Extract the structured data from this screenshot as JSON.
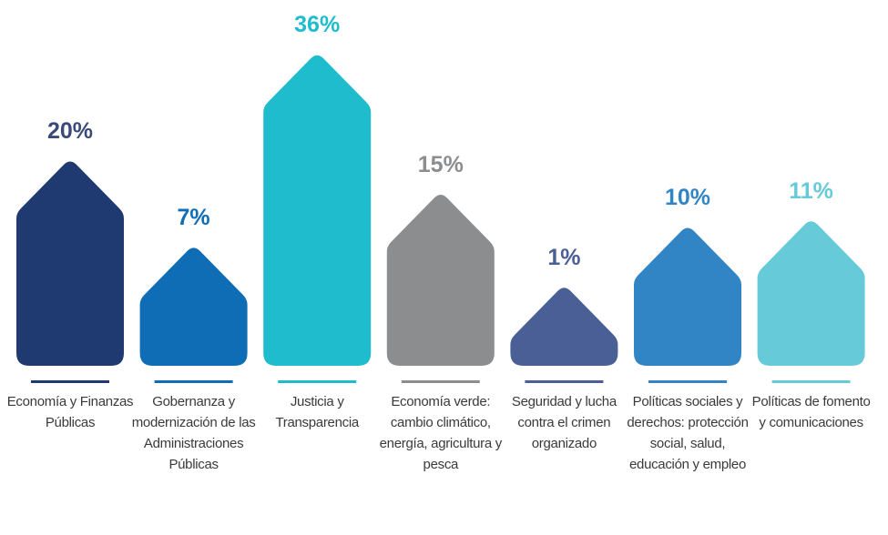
{
  "chart_data": {
    "type": "bar",
    "categories": [
      "Economía y Finanzas Públicas",
      "Gobernanza y modernización de las Administraciones Públicas",
      "Justicia y Transparencia",
      "Economía verde: cambio climático, energía, agricultura y pesca",
      "Seguridad y lucha contra el crimen organizado",
      "Políticas sociales y derechos: protección social, salud, educación y empleo",
      "Políticas de fomento y comunicaciones"
    ],
    "values": [
      20,
      7,
      36,
      15,
      1,
      10,
      11
    ],
    "value_labels": [
      "20%",
      "7%",
      "36%",
      "15%",
      "1%",
      "10%",
      "11%"
    ],
    "colors": [
      "#1f3a70",
      "#0f6db6",
      "#1ebccd",
      "#8c8d8f",
      "#4a5f96",
      "#3185c4",
      "#66cad9"
    ]
  }
}
